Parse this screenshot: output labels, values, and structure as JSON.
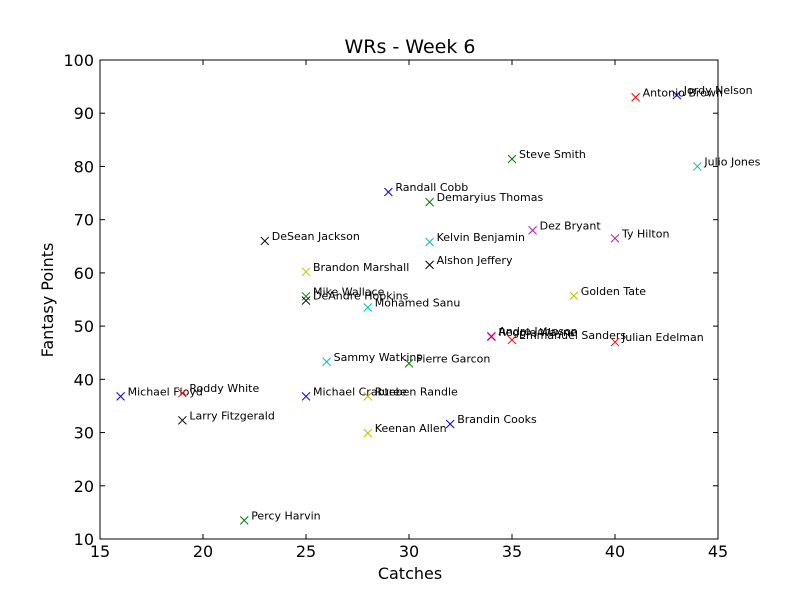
{
  "chart_data": {
    "type": "scatter",
    "title": "WRs - Week 6",
    "xlabel": "Catches",
    "ylabel": "Fantasy Points",
    "xlim": [
      15,
      45
    ],
    "ylim": [
      10,
      100
    ],
    "xticks": [
      "15",
      "20",
      "25",
      "30",
      "35",
      "40",
      "45"
    ],
    "yticks": [
      "10",
      "20",
      "30",
      "40",
      "50",
      "60",
      "70",
      "80",
      "90",
      "100"
    ],
    "marker": "x",
    "grid": false,
    "points": [
      {
        "label": "Jordy Nelson",
        "x": 43,
        "y": 93.4,
        "color": "#0000ff"
      },
      {
        "label": "Antonio Brown",
        "x": 41,
        "y": 93,
        "color": "#ff0000"
      },
      {
        "label": "Julio Jones",
        "x": 44,
        "y": 80,
        "color": "#00bfbf"
      },
      {
        "label": "Steve Smith",
        "x": 35,
        "y": 81.4,
        "color": "#008000"
      },
      {
        "label": "Randall Cobb",
        "x": 29,
        "y": 75.2,
        "color": "#0000ff"
      },
      {
        "label": "Demaryius Thomas",
        "x": 31,
        "y": 73.3,
        "color": "#008000"
      },
      {
        "label": "Dez Bryant",
        "x": 36,
        "y": 68,
        "color": "#bf00bf"
      },
      {
        "label": "Ty Hilton",
        "x": 40,
        "y": 66.5,
        "color": "#bf00bf"
      },
      {
        "label": "DeSean Jackson",
        "x": 23,
        "y": 66,
        "color": "#000000"
      },
      {
        "label": "Kelvin Benjamin",
        "x": 31,
        "y": 65.8,
        "color": "#00bfbf"
      },
      {
        "label": "Alshon Jeffery",
        "x": 31,
        "y": 61.5,
        "color": "#000000"
      },
      {
        "label": "Brandon Marshall",
        "x": 25,
        "y": 60.2,
        "color": "#bfbf00"
      },
      {
        "label": "Golden Tate",
        "x": 38,
        "y": 55.7,
        "color": "#bfbf00"
      },
      {
        "label": "Mike Wallace",
        "x": 25,
        "y": 55.6,
        "color": "#008000"
      },
      {
        "label": "DeAndre Hopkins",
        "x": 25,
        "y": 54.8,
        "color": "#000000"
      },
      {
        "label": "Mohamed Sanu",
        "x": 28,
        "y": 53.5,
        "color": "#00bfbf"
      },
      {
        "label": "Reggie Wayne",
        "x": 34,
        "y": 48,
        "color": "#ff0000"
      },
      {
        "label": "Andre Johnson",
        "x": 34,
        "y": 48.1,
        "color": "#bf00bf"
      },
      {
        "label": "Emmanuel Sanders",
        "x": 35,
        "y": 47.4,
        "color": "#ff0000"
      },
      {
        "label": "Julian Edelman",
        "x": 40,
        "y": 47,
        "color": "#ff0000"
      },
      {
        "label": "Sammy Watkins",
        "x": 26,
        "y": 43.3,
        "color": "#00bfbf"
      },
      {
        "label": "Pierre Garcon",
        "x": 30,
        "y": 43,
        "color": "#008000"
      },
      {
        "label": "Michael Floyd",
        "x": 16,
        "y": 36.8,
        "color": "#0000ff"
      },
      {
        "label": "Roddy White",
        "x": 19,
        "y": 37.4,
        "color": "#ff0000"
      },
      {
        "label": "Michael Crabtree",
        "x": 25,
        "y": 36.8,
        "color": "#0000ff"
      },
      {
        "label": "Rueben Randle",
        "x": 28,
        "y": 36.8,
        "color": "#bfbf00"
      },
      {
        "label": "Larry Fitzgerald",
        "x": 19,
        "y": 32.3,
        "color": "#000000"
      },
      {
        "label": "Brandin Cooks",
        "x": 32,
        "y": 31.6,
        "color": "#0000ff"
      },
      {
        "label": "Keenan Allen",
        "x": 28,
        "y": 29.9,
        "color": "#bfbf00"
      },
      {
        "label": "Percy Harvin",
        "x": 22,
        "y": 13.5,
        "color": "#008000"
      }
    ]
  }
}
